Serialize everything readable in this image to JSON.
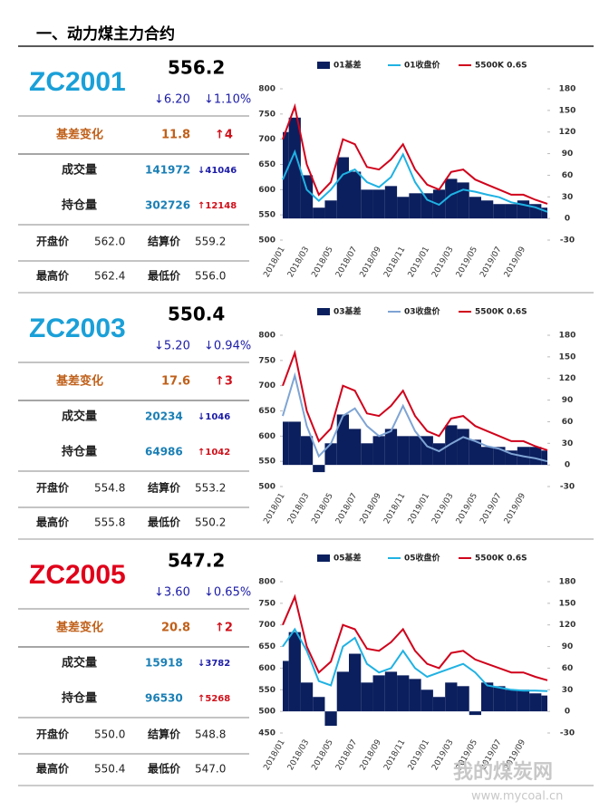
{
  "header": {
    "title": "一、动力煤主力合约"
  },
  "watermark": {
    "name": "我的煤炭网",
    "url": "www.mycoal.cn"
  },
  "panels": [
    {
      "code": "ZC2001",
      "code_color": "#1aa0d8",
      "price": "556.2",
      "change": "↓6.20",
      "change_pct": "↓1.10%",
      "basis_label": "基差变化",
      "basis": "11.8",
      "basis_change": "↑4",
      "volume_label": "成交量",
      "volume": "141972",
      "volume_change": "↓41046",
      "oi_label": "持仓量",
      "oi": "302726",
      "oi_change": "↑12148",
      "open_label": "开盘价",
      "open": "562.0",
      "settle_label": "结算价",
      "settle": "559.2",
      "high_label": "最高价",
      "high": "562.4",
      "low_label": "最低价",
      "low": "556.0"
    },
    {
      "code": "ZC2003",
      "code_color": "#1aa0d8",
      "price": "550.4",
      "change": "↓5.20",
      "change_pct": "↓0.94%",
      "basis_label": "基差变化",
      "basis": "17.6",
      "basis_change": "↑3",
      "volume_label": "成交量",
      "volume": "20234",
      "volume_change": "↓1046",
      "oi_label": "持仓量",
      "oi": "64986",
      "oi_change": "↑1042",
      "open_label": "开盘价",
      "open": "554.8",
      "settle_label": "结算价",
      "settle": "553.2",
      "high_label": "最高价",
      "high": "555.8",
      "low_label": "最低价",
      "low": "550.2"
    },
    {
      "code": "ZC2005",
      "code_color": "#e0001a",
      "price": "547.2",
      "change": "↓3.60",
      "change_pct": "↓0.65%",
      "basis_label": "基差变化",
      "basis": "20.8",
      "basis_change": "↑2",
      "volume_label": "成交量",
      "volume": "15918",
      "volume_change": "↓3782",
      "oi_label": "持仓量",
      "oi": "96530",
      "oi_change": "↑5268",
      "open_label": "开盘价",
      "open": "550.0",
      "settle_label": "结算价",
      "settle": "548.8",
      "high_label": "最高价",
      "high": "550.4",
      "low_label": "最低价",
      "low": "547.0"
    }
  ],
  "chart_data": [
    {
      "type": "combo",
      "categories": [
        "2018/01",
        null,
        "2018/03",
        null,
        "2018/05",
        null,
        "2018/07",
        null,
        "2018/09",
        null,
        "2018/11",
        null,
        "2019/01",
        null,
        "2019/03",
        null,
        "2019/05",
        null,
        "2019/07",
        null,
        "2019/09",
        null,
        null
      ],
      "ylim": [
        500,
        800
      ],
      "yticks": [
        500,
        550,
        600,
        650,
        700,
        750,
        800
      ],
      "y2lim": [
        -30,
        180
      ],
      "y2ticks": [
        -30,
        0,
        30,
        60,
        90,
        120,
        150,
        180
      ],
      "series": [
        {
          "name": "01基差",
          "color": "#0b1f5e",
          "style": "area",
          "axis": "y2",
          "values": [
            120,
            140,
            60,
            15,
            25,
            85,
            65,
            40,
            40,
            45,
            30,
            35,
            35,
            40,
            55,
            50,
            30,
            25,
            20,
            20,
            25,
            20,
            15
          ]
        },
        {
          "name": "01收盘价",
          "color": "#1fb2e3",
          "style": "line",
          "values": [
            620,
            675,
            600,
            578,
            600,
            630,
            640,
            615,
            605,
            625,
            670,
            615,
            580,
            570,
            590,
            600,
            596,
            590,
            585,
            575,
            570,
            565,
            556
          ]
        },
        {
          "name": "5500K 0.6S",
          "color": "#d0021b",
          "style": "line",
          "values": [
            700,
            765,
            650,
            590,
            615,
            700,
            690,
            645,
            640,
            660,
            690,
            640,
            610,
            600,
            635,
            640,
            620,
            610,
            600,
            590,
            590,
            580,
            572
          ]
        }
      ]
    },
    {
      "type": "combo",
      "categories": [
        "2018/01",
        null,
        "2018/03",
        null,
        "2018/05",
        null,
        "2018/07",
        null,
        "2018/09",
        null,
        "2018/11",
        null,
        "2019/01",
        null,
        "2019/03",
        null,
        "2019/05",
        null,
        "2019/07",
        null,
        "2019/09",
        null,
        null
      ],
      "ylim": [
        500,
        800
      ],
      "yticks": [
        500,
        550,
        600,
        650,
        700,
        750,
        800
      ],
      "y2lim": [
        -30,
        180
      ],
      "y2ticks": [
        -30,
        0,
        30,
        60,
        90,
        120,
        150,
        180
      ],
      "series": [
        {
          "name": "03基差",
          "color": "#0b1f5e",
          "style": "area",
          "axis": "y2",
          "values": [
            60,
            60,
            40,
            -10,
            30,
            70,
            50,
            30,
            40,
            50,
            40,
            40,
            40,
            30,
            55,
            50,
            35,
            25,
            25,
            20,
            25,
            25,
            20
          ]
        },
        {
          "name": "03收盘价",
          "color": "#7ea4d4",
          "style": "line",
          "values": [
            640,
            720,
            620,
            560,
            585,
            640,
            655,
            620,
            600,
            610,
            660,
            610,
            580,
            570,
            585,
            598,
            590,
            580,
            575,
            565,
            560,
            556,
            550
          ]
        },
        {
          "name": "5500K 0.6S",
          "color": "#d0021b",
          "style": "line",
          "values": [
            700,
            765,
            650,
            590,
            615,
            700,
            690,
            645,
            640,
            660,
            690,
            640,
            610,
            600,
            635,
            640,
            620,
            610,
            600,
            590,
            590,
            580,
            572
          ]
        }
      ]
    },
    {
      "type": "combo",
      "categories": [
        "2018/01",
        null,
        "2018/03",
        null,
        "2018/05",
        null,
        "2018/07",
        null,
        "2018/09",
        null,
        "2018/11",
        null,
        "2019/01",
        null,
        "2019/03",
        null,
        "2019/05",
        null,
        "2019/07",
        null,
        "2019/09",
        null,
        null
      ],
      "ylim": [
        450,
        800
      ],
      "yticks": [
        450,
        500,
        550,
        600,
        650,
        700,
        750,
        800
      ],
      "y2lim": [
        -30,
        180
      ],
      "y2ticks": [
        -30,
        0,
        30,
        60,
        90,
        120,
        150,
        180
      ],
      "series": [
        {
          "name": "05基差",
          "color": "#0b1f5e",
          "style": "area",
          "axis": "y2",
          "values": [
            70,
            110,
            40,
            20,
            -20,
            55,
            80,
            40,
            50,
            55,
            50,
            45,
            30,
            20,
            40,
            35,
            -5,
            40,
            35,
            30,
            30,
            25,
            22
          ]
        },
        {
          "name": "05收盘价",
          "color": "#1fb2e3",
          "style": "line",
          "values": [
            650,
            690,
            640,
            570,
            560,
            650,
            670,
            610,
            590,
            600,
            640,
            600,
            580,
            590,
            600,
            610,
            590,
            560,
            555,
            550,
            548,
            548,
            547
          ]
        },
        {
          "name": "5500K 0.6S",
          "color": "#d0021b",
          "style": "line",
          "values": [
            700,
            765,
            650,
            590,
            615,
            700,
            690,
            645,
            640,
            660,
            690,
            640,
            610,
            600,
            635,
            640,
            620,
            610,
            600,
            590,
            590,
            580,
            572
          ]
        }
      ]
    }
  ]
}
